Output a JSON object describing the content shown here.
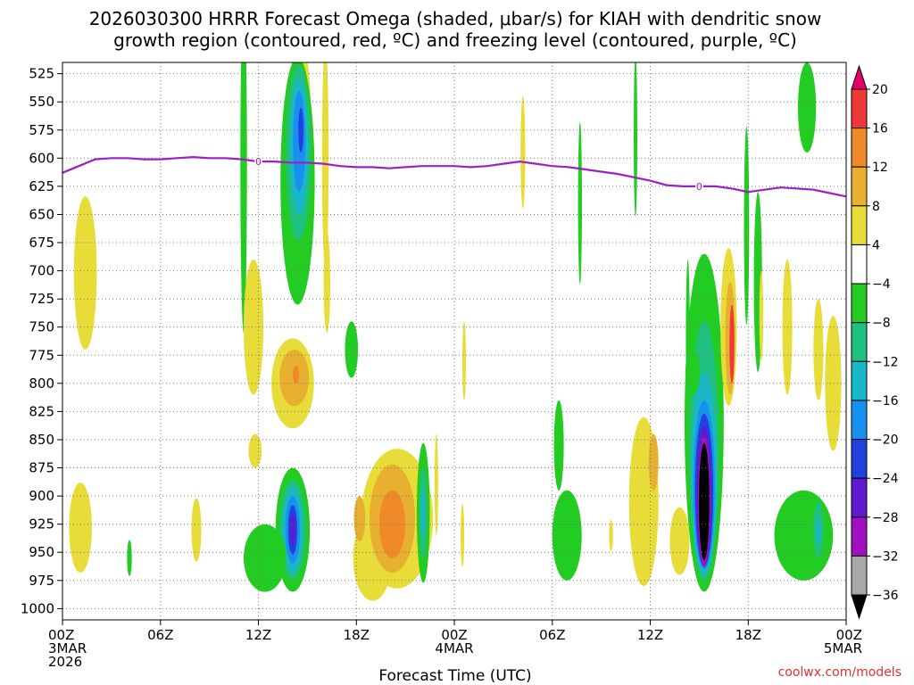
{
  "chart_data": {
    "type": "heatmap",
    "title_line1": "2026030300 HRRR Forecast Omega (shaded, μbar/s) for KIAH with dendritic snow",
    "title_line2": "growth region (contoured, red, ºC) and freezing level (contoured, purple, ºC)",
    "xlabel": "Forecast Time (UTC)",
    "ylabel": "",
    "credit": "coolwx.com/models",
    "xlim": [
      0,
      48
    ],
    "ylim": [
      1010,
      515
    ],
    "y_ticks": [
      525,
      550,
      575,
      600,
      625,
      650,
      675,
      700,
      725,
      750,
      775,
      800,
      825,
      850,
      875,
      900,
      925,
      950,
      975,
      1000
    ],
    "x_ticks": [
      {
        "hour": 0,
        "lines": [
          "00Z",
          "3MAR",
          "2026"
        ]
      },
      {
        "hour": 6,
        "lines": [
          "06Z"
        ]
      },
      {
        "hour": 12,
        "lines": [
          "12Z"
        ]
      },
      {
        "hour": 18,
        "lines": [
          "18Z"
        ]
      },
      {
        "hour": 24,
        "lines": [
          "00Z",
          "4MAR"
        ]
      },
      {
        "hour": 30,
        "lines": [
          "06Z"
        ]
      },
      {
        "hour": 36,
        "lines": [
          "12Z"
        ]
      },
      {
        "hour": 42,
        "lines": [
          "18Z"
        ]
      },
      {
        "hour": 48,
        "lines": [
          "00Z",
          "5MAR"
        ]
      }
    ],
    "colorbar": {
      "labels": [
        "20",
        "16",
        "12",
        "8",
        "4",
        "−4",
        "−8",
        "−12",
        "−16",
        "−20",
        "−24",
        "−28",
        "−32",
        "−36"
      ],
      "bins": [
        {
          "lo": 20,
          "hi": 24,
          "color": "#e8006a"
        },
        {
          "lo": 16,
          "hi": 20,
          "color": "#f03838"
        },
        {
          "lo": 12,
          "hi": 16,
          "color": "#f08a28"
        },
        {
          "lo": 8,
          "hi": 12,
          "color": "#e8b030"
        },
        {
          "lo": 4,
          "hi": 8,
          "color": "#e8dc38"
        },
        {
          "lo": -4,
          "hi": 4,
          "color": "#ffffff"
        },
        {
          "lo": -8,
          "hi": -4,
          "color": "#22cc22"
        },
        {
          "lo": -12,
          "hi": -8,
          "color": "#20c080"
        },
        {
          "lo": -16,
          "hi": -12,
          "color": "#18b8c8"
        },
        {
          "lo": -20,
          "hi": -16,
          "color": "#1890f0"
        },
        {
          "lo": -24,
          "hi": -20,
          "color": "#2040e0"
        },
        {
          "lo": -28,
          "hi": -24,
          "color": "#6018d0"
        },
        {
          "lo": -32,
          "hi": -28,
          "color": "#a010c0"
        },
        {
          "lo": -36,
          "hi": -32,
          "color": "#a8a8a8"
        },
        {
          "lo": -40,
          "hi": -36,
          "color": "#000000"
        }
      ]
    },
    "freezing_level": {
      "color": "#9a20c8",
      "label": "0",
      "points": [
        [
          0,
          613
        ],
        [
          1,
          607
        ],
        [
          2,
          601
        ],
        [
          3,
          600
        ],
        [
          4,
          600
        ],
        [
          5,
          601
        ],
        [
          6,
          601
        ],
        [
          7,
          600
        ],
        [
          8,
          599
        ],
        [
          9,
          600
        ],
        [
          10,
          600
        ],
        [
          11,
          601
        ],
        [
          12,
          603
        ],
        [
          13,
          603
        ],
        [
          14,
          604
        ],
        [
          15,
          604
        ],
        [
          16,
          605
        ],
        [
          17,
          607
        ],
        [
          18,
          608
        ],
        [
          19,
          608
        ],
        [
          20,
          609
        ],
        [
          21,
          608
        ],
        [
          22,
          607
        ],
        [
          23,
          607
        ],
        [
          24,
          607
        ],
        [
          25,
          608
        ],
        [
          26,
          607
        ],
        [
          27,
          605
        ],
        [
          28,
          603
        ],
        [
          29,
          605
        ],
        [
          30,
          607
        ],
        [
          31,
          608
        ],
        [
          32,
          610
        ],
        [
          33,
          612
        ],
        [
          34,
          614
        ],
        [
          35,
          617
        ],
        [
          36,
          620
        ],
        [
          37,
          624
        ],
        [
          38,
          625
        ],
        [
          39,
          625
        ],
        [
          40,
          625
        ],
        [
          41,
          627
        ],
        [
          42,
          630
        ],
        [
          43,
          628
        ],
        [
          44,
          626
        ],
        [
          45,
          627
        ],
        [
          46,
          628
        ],
        [
          47,
          631
        ],
        [
          48,
          634
        ]
      ],
      "label_hours": [
        12,
        39
      ]
    },
    "ground_band": {
      "p_top": 1010,
      "color": "#a0522d"
    },
    "omega_features": [
      {
        "t": 1.4,
        "p": 702,
        "rt": 0.7,
        "rp": 68,
        "v": 5
      },
      {
        "t": 1.1,
        "p": 928,
        "rt": 0.7,
        "rp": 40,
        "v": 5
      },
      {
        "t": 11.1,
        "p": 605,
        "rt": 0.2,
        "rp": 150,
        "v": -5
      },
      {
        "t": 14.9,
        "p": 560,
        "rt": 0.3,
        "rp": 48,
        "v": 5
      },
      {
        "t": 16.1,
        "p": 600,
        "rt": 0.2,
        "rp": 100,
        "v": 5
      },
      {
        "t": 16.2,
        "p": 710,
        "rt": 0.2,
        "rp": 45,
        "v": 5
      },
      {
        "t": 14.4,
        "p": 620,
        "rt": 1.05,
        "rp": 110,
        "v": -6
      },
      {
        "t": 14.45,
        "p": 595,
        "rt": 0.75,
        "rp": 78,
        "v": -9
      },
      {
        "t": 14.5,
        "p": 590,
        "rt": 0.55,
        "rp": 60,
        "v": -13
      },
      {
        "t": 14.5,
        "p": 585,
        "rt": 0.38,
        "rp": 45,
        "v": -17
      },
      {
        "t": 14.6,
        "p": 575,
        "rt": 0.16,
        "rp": 20,
        "v": -21
      },
      {
        "t": 11.7,
        "p": 750,
        "rt": 0.6,
        "rp": 60,
        "v": 5
      },
      {
        "t": 14.1,
        "p": 800,
        "rt": 1.3,
        "rp": 40,
        "v": 5
      },
      {
        "t": 14.2,
        "p": 795,
        "rt": 0.9,
        "rp": 25,
        "v": 9
      },
      {
        "t": 14.3,
        "p": 792,
        "rt": 0.2,
        "rp": 8,
        "v": 13
      },
      {
        "t": 17.7,
        "p": 770,
        "rt": 0.4,
        "rp": 25,
        "v": -5
      },
      {
        "t": 11.8,
        "p": 860,
        "rt": 0.4,
        "rp": 15,
        "v": 5
      },
      {
        "t": 14.1,
        "p": 930,
        "rt": 1.05,
        "rp": 55,
        "v": -6
      },
      {
        "t": 14.1,
        "p": 930,
        "rt": 0.8,
        "rp": 44,
        "v": -9
      },
      {
        "t": 14.1,
        "p": 930,
        "rt": 0.6,
        "rp": 38,
        "v": -13
      },
      {
        "t": 14.1,
        "p": 930,
        "rt": 0.45,
        "rp": 30,
        "v": -17
      },
      {
        "t": 14.1,
        "p": 930,
        "rt": 0.28,
        "rp": 22,
        "v": -22
      },
      {
        "t": 14.1,
        "p": 930,
        "rt": 0.15,
        "rp": 14,
        "v": -26
      },
      {
        "t": 12.4,
        "p": 955,
        "rt": 1.3,
        "rp": 30,
        "v": -5
      },
      {
        "t": 8.2,
        "p": 930,
        "rt": 0.3,
        "rp": 28,
        "v": 5
      },
      {
        "t": 4.1,
        "p": 955,
        "rt": 0.15,
        "rp": 16,
        "v": -5
      },
      {
        "t": 20.5,
        "p": 920,
        "rt": 2.2,
        "rp": 62,
        "v": 5
      },
      {
        "t": 19.0,
        "p": 955,
        "rt": 1.2,
        "rp": 38,
        "v": 5
      },
      {
        "t": 20.2,
        "p": 920,
        "rt": 1.4,
        "rp": 48,
        "v": 9
      },
      {
        "t": 20.2,
        "p": 925,
        "rt": 0.8,
        "rp": 30,
        "v": 13
      },
      {
        "t": 18.2,
        "p": 920,
        "rt": 0.35,
        "rp": 20,
        "v": 9
      },
      {
        "t": 22.1,
        "p": 915,
        "rt": 0.4,
        "rp": 62,
        "v": -5
      },
      {
        "t": 22.1,
        "p": 915,
        "rt": 0.24,
        "rp": 40,
        "v": -9
      },
      {
        "t": 22.1,
        "p": 915,
        "rt": 0.12,
        "rp": 20,
        "v": -13
      },
      {
        "t": 22.9,
        "p": 890,
        "rt": 0.1,
        "rp": 45,
        "v": 5
      },
      {
        "t": 24.6,
        "p": 780,
        "rt": 0.1,
        "rp": 35,
        "v": 5
      },
      {
        "t": 24.5,
        "p": 935,
        "rt": 0.1,
        "rp": 28,
        "v": 5
      },
      {
        "t": 28.2,
        "p": 595,
        "rt": 0.14,
        "rp": 50,
        "v": 5
      },
      {
        "t": 31.7,
        "p": 640,
        "rt": 0.12,
        "rp": 72,
        "v": -5
      },
      {
        "t": 30.4,
        "p": 855,
        "rt": 0.3,
        "rp": 40,
        "v": -5
      },
      {
        "t": 30.9,
        "p": 935,
        "rt": 0.9,
        "rp": 40,
        "v": -5
      },
      {
        "t": 33.6,
        "p": 935,
        "rt": 0.12,
        "rp": 14,
        "v": 5
      },
      {
        "t": 35.6,
        "p": 905,
        "rt": 0.9,
        "rp": 75,
        "v": 5
      },
      {
        "t": 36.2,
        "p": 870,
        "rt": 0.3,
        "rp": 25,
        "v": 9
      },
      {
        "t": 35.1,
        "p": 580,
        "rt": 0.1,
        "rp": 72,
        "v": -5
      },
      {
        "t": 39.3,
        "p": 835,
        "rt": 1.2,
        "rp": 150,
        "v": -6
      },
      {
        "t": 39.3,
        "p": 860,
        "rt": 0.9,
        "rp": 115,
        "v": -10
      },
      {
        "t": 39.3,
        "p": 880,
        "rt": 0.78,
        "rp": 90,
        "v": -14
      },
      {
        "t": 39.3,
        "p": 890,
        "rt": 0.66,
        "rp": 75,
        "v": -18
      },
      {
        "t": 39.3,
        "p": 895,
        "rt": 0.56,
        "rp": 68,
        "v": -22
      },
      {
        "t": 39.3,
        "p": 900,
        "rt": 0.46,
        "rp": 62,
        "v": -26
      },
      {
        "t": 39.3,
        "p": 905,
        "rt": 0.38,
        "rp": 58,
        "v": -30
      },
      {
        "t": 39.3,
        "p": 905,
        "rt": 0.32,
        "rp": 52,
        "v": -38
      },
      {
        "t": 38.6,
        "p": 790,
        "rt": 0.45,
        "rp": 20,
        "v": -5
      },
      {
        "t": 38.3,
        "p": 760,
        "rt": 0.12,
        "rp": 70,
        "v": -5
      },
      {
        "t": 40.8,
        "p": 750,
        "rt": 0.5,
        "rp": 70,
        "v": 5
      },
      {
        "t": 40.9,
        "p": 760,
        "rt": 0.3,
        "rp": 50,
        "v": 9
      },
      {
        "t": 41.0,
        "p": 765,
        "rt": 0.15,
        "rp": 35,
        "v": 16
      },
      {
        "t": 41.9,
        "p": 660,
        "rt": 0.16,
        "rp": 88,
        "v": -5
      },
      {
        "t": 42.6,
        "p": 710,
        "rt": 0.25,
        "rp": 80,
        "v": -5
      },
      {
        "t": 42.8,
        "p": 740,
        "rt": 0.12,
        "rp": 40,
        "v": 5
      },
      {
        "t": 44.4,
        "p": 750,
        "rt": 0.3,
        "rp": 60,
        "v": 5
      },
      {
        "t": 46.3,
        "p": 770,
        "rt": 0.3,
        "rp": 45,
        "v": 5
      },
      {
        "t": 47.2,
        "p": 800,
        "rt": 0.5,
        "rp": 60,
        "v": 5
      },
      {
        "t": 45.6,
        "p": 555,
        "rt": 0.55,
        "rp": 40,
        "v": -5
      },
      {
        "t": 45.4,
        "p": 935,
        "rt": 1.8,
        "rp": 40,
        "v": -5
      },
      {
        "t": 46.3,
        "p": 930,
        "rt": 0.3,
        "rp": 25,
        "v": -9
      },
      {
        "t": 46.3,
        "p": 930,
        "rt": 0.15,
        "rp": 12,
        "v": -13
      },
      {
        "t": 37.8,
        "p": 940,
        "rt": 0.6,
        "rp": 30,
        "v": 5
      }
    ]
  }
}
